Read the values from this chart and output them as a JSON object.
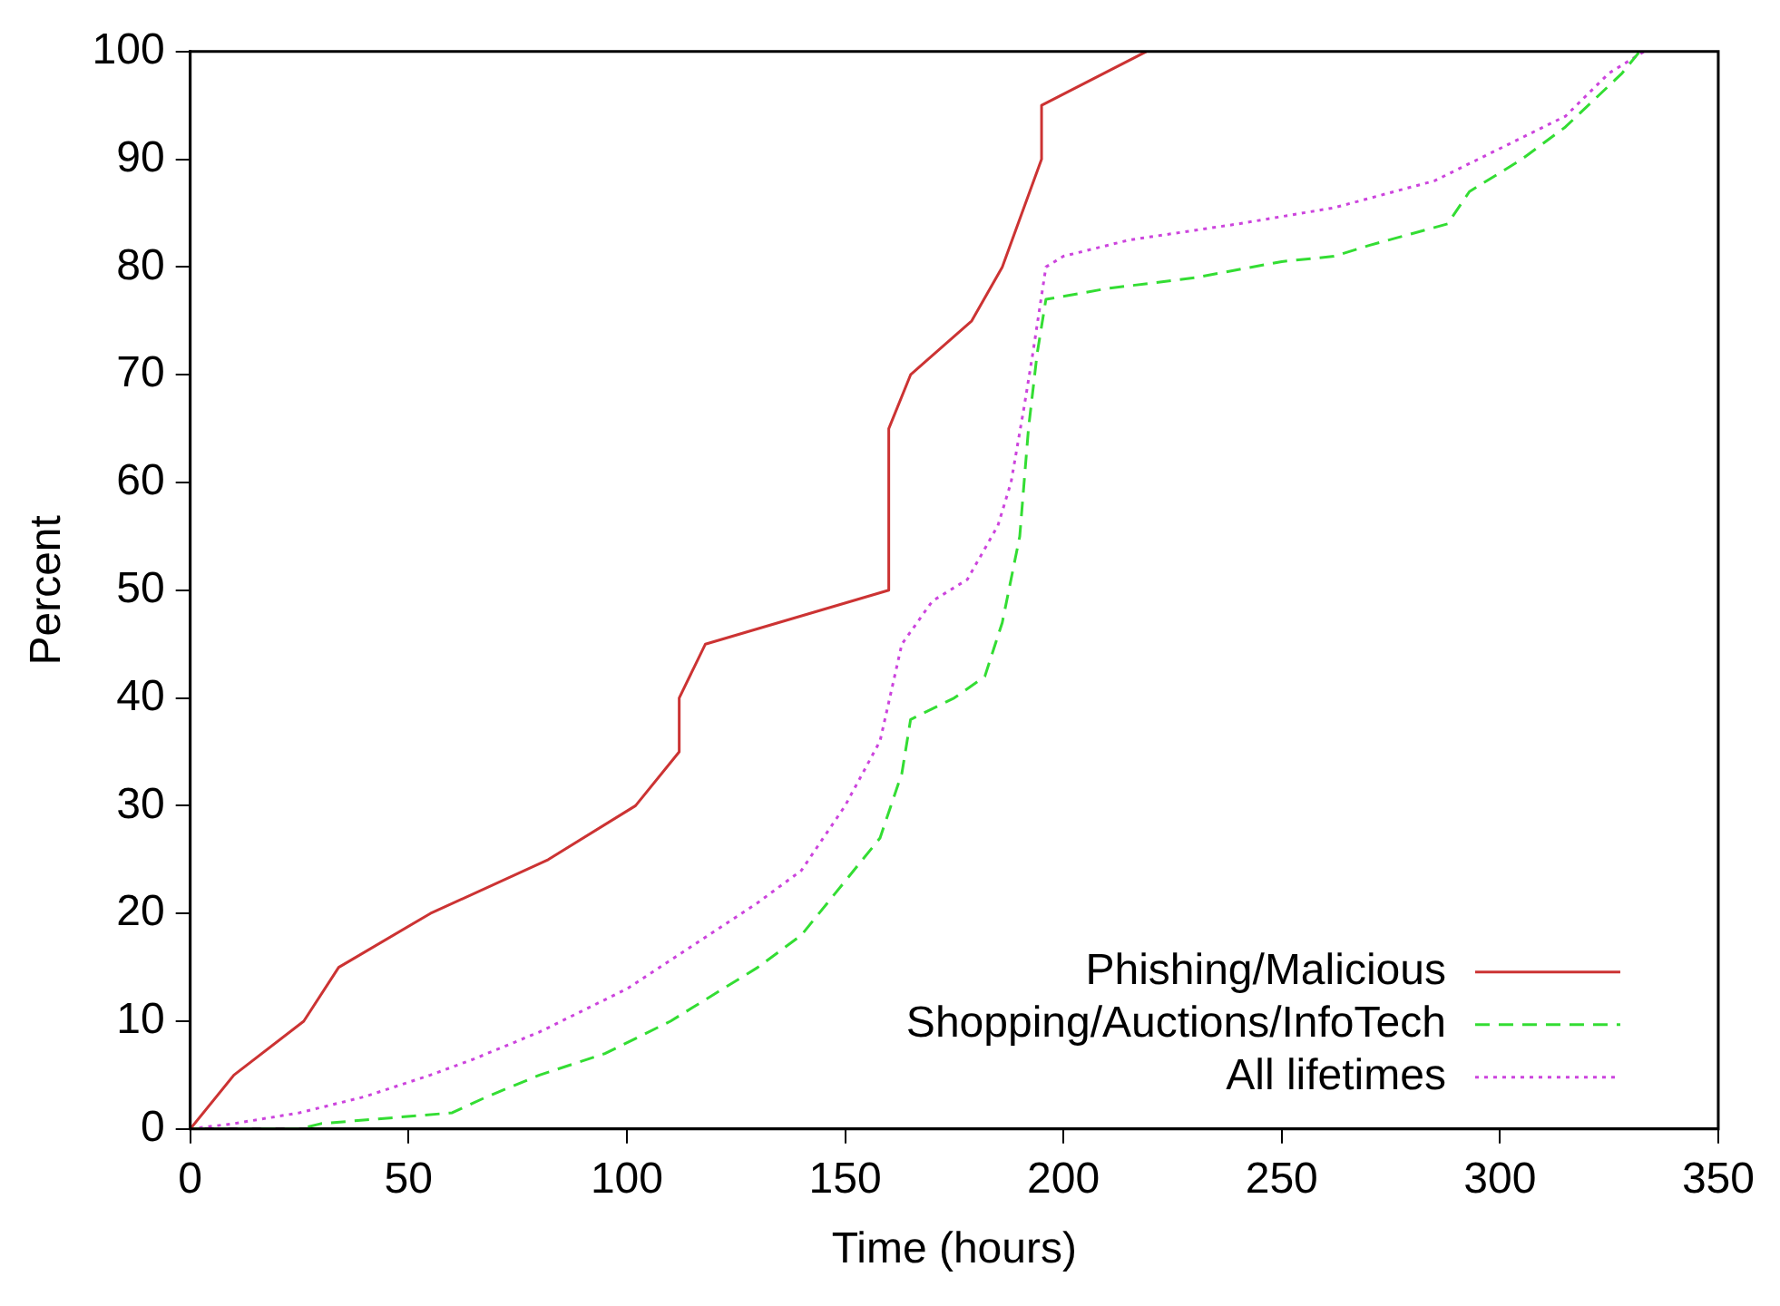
{
  "chart_data": {
    "type": "line",
    "xlabel": "Time (hours)",
    "ylabel": "Percent",
    "xlim": [
      0,
      350
    ],
    "xticks": [
      0,
      50,
      100,
      150,
      200,
      250,
      300,
      350
    ],
    "ylim": [
      0,
      100
    ],
    "yticks": [
      0,
      10,
      20,
      30,
      40,
      50,
      60,
      70,
      80,
      90,
      100
    ],
    "grid": false,
    "legend": "bottom right",
    "marker": "none",
    "series": [
      {
        "name": "Phishing/Malicious",
        "color": "#cc3333",
        "line_style": "solid",
        "x": [
          0,
          10,
          26,
          34,
          55,
          82,
          102,
          112,
          112,
          118,
          160,
          160,
          165,
          179,
          186,
          195,
          195,
          219
        ],
        "values": [
          0,
          5,
          10,
          15,
          20,
          25,
          30,
          35,
          40,
          45,
          50,
          65,
          70,
          75,
          80,
          90,
          95,
          100
        ]
      },
      {
        "name": "Shopping/Auctions/InfoTech",
        "color": "#33dd33",
        "line_style": "dashed",
        "x": [
          0,
          25,
          30,
          60,
          68,
          80,
          95,
          110,
          130,
          140,
          150,
          158,
          163,
          165,
          175,
          182,
          186,
          190,
          192,
          194,
          196,
          210,
          230,
          250,
          262,
          270,
          288,
          293,
          305,
          315,
          328,
          332
        ],
        "values": [
          0,
          0,
          0.5,
          1.5,
          3,
          5,
          7,
          10,
          15,
          18,
          23,
          27,
          33,
          38,
          40,
          42,
          47,
          55,
          65,
          72,
          77,
          78,
          79,
          80.5,
          81,
          82,
          84,
          87,
          90,
          93,
          98,
          100
        ]
      },
      {
        "name": "All lifetimes",
        "color": "#cc44dd",
        "line_style": "dotted",
        "x": [
          0,
          10,
          25,
          40,
          55,
          65,
          80,
          100,
          115,
          130,
          140,
          150,
          158,
          163,
          170,
          178,
          185,
          188,
          191,
          193,
          196,
          200,
          215,
          240,
          262,
          285,
          300,
          315,
          325,
          333
        ],
        "values": [
          0,
          0.5,
          1.5,
          3,
          5,
          6.5,
          9,
          13,
          17,
          21,
          24,
          30,
          36,
          45,
          49,
          51,
          56,
          60,
          67,
          72,
          80,
          81,
          82.5,
          84,
          85.5,
          88,
          91,
          94,
          98,
          100
        ]
      }
    ]
  }
}
